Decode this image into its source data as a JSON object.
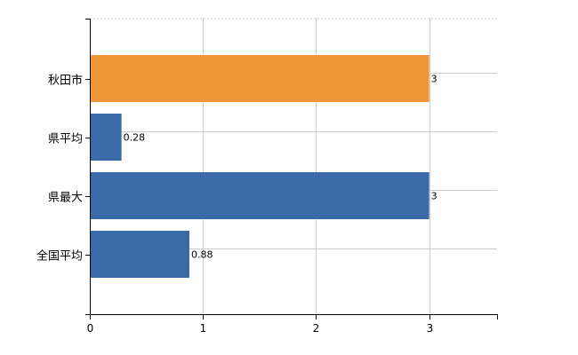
{
  "chart_data": {
    "type": "bar",
    "orientation": "horizontal",
    "categories": [
      "秋田市",
      "県平均",
      "県最大",
      "全国平均"
    ],
    "values": [
      3,
      0.28,
      3,
      0.88
    ],
    "value_labels": [
      "3",
      "0.28",
      "3",
      "0.88"
    ],
    "bar_colors": [
      "#f0963a",
      "#3b6aa8",
      "#3b6aa8",
      "#3b6aa8"
    ],
    "xlim": [
      0,
      3.6
    ],
    "xticks": [
      0,
      1,
      2,
      3
    ],
    "xtick_labels": [
      "0",
      "1",
      "2",
      "3"
    ],
    "grid": true,
    "title": "",
    "xlabel": "",
    "ylabel": ""
  }
}
